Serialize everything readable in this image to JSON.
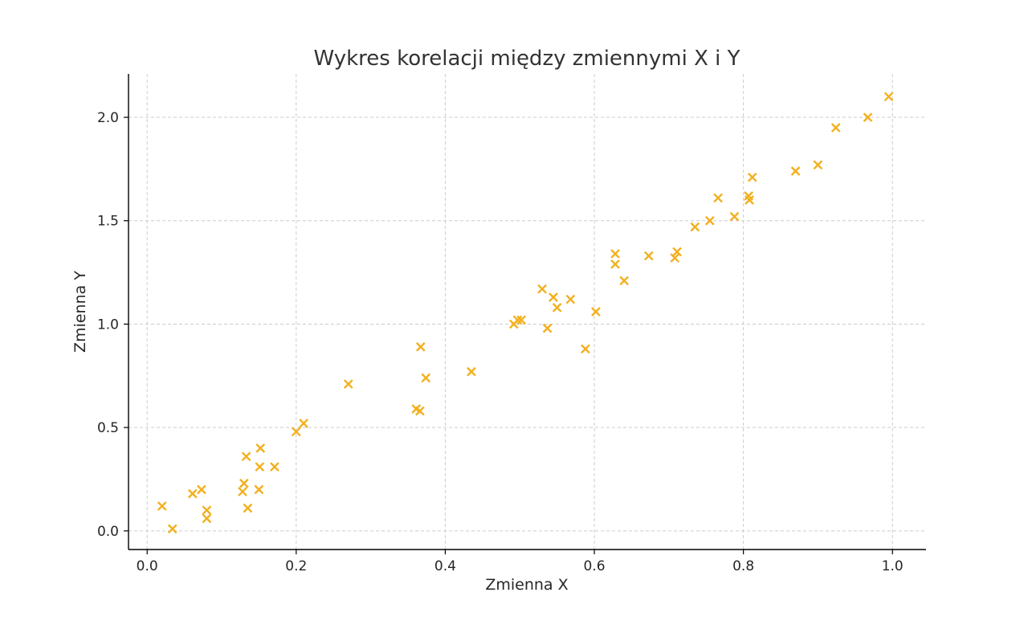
{
  "chart_data": {
    "type": "scatter",
    "title": "Wykres korelacji między zmiennymi X i Y",
    "xlabel": "Zmienna X",
    "ylabel": "Zmienna Y",
    "xlim": [
      -0.025,
      1.045
    ],
    "ylim": [
      -0.09,
      2.21
    ],
    "xticks": [
      0.0,
      0.2,
      0.4,
      0.6,
      0.8,
      1.0
    ],
    "xtick_labels": [
      "0.0",
      "0.2",
      "0.4",
      "0.6",
      "0.8",
      "1.0"
    ],
    "yticks": [
      0.0,
      0.5,
      1.0,
      1.5,
      2.0
    ],
    "ytick_labels": [
      "0.0",
      "0.5",
      "1.0",
      "1.5",
      "2.0"
    ],
    "grid": true,
    "marker": "x",
    "color": "#F2B01E",
    "series": [
      {
        "points": [
          [
            0.02,
            0.12
          ],
          [
            0.034,
            0.01
          ],
          [
            0.061,
            0.18
          ],
          [
            0.073,
            0.2
          ],
          [
            0.08,
            0.1
          ],
          [
            0.08,
            0.06
          ],
          [
            0.128,
            0.19
          ],
          [
            0.13,
            0.23
          ],
          [
            0.133,
            0.36
          ],
          [
            0.135,
            0.11
          ],
          [
            0.15,
            0.2
          ],
          [
            0.151,
            0.31
          ],
          [
            0.152,
            0.4
          ],
          [
            0.171,
            0.31
          ],
          [
            0.2,
            0.48
          ],
          [
            0.21,
            0.52
          ],
          [
            0.27,
            0.71
          ],
          [
            0.361,
            0.59
          ],
          [
            0.366,
            0.58
          ],
          [
            0.367,
            0.89
          ],
          [
            0.374,
            0.74
          ],
          [
            0.435,
            0.77
          ],
          [
            0.492,
            1.0
          ],
          [
            0.497,
            1.02
          ],
          [
            0.502,
            1.02
          ],
          [
            0.53,
            1.17
          ],
          [
            0.537,
            0.98
          ],
          [
            0.545,
            1.13
          ],
          [
            0.55,
            1.08
          ],
          [
            0.568,
            1.12
          ],
          [
            0.588,
            0.88
          ],
          [
            0.602,
            1.06
          ],
          [
            0.628,
            1.34
          ],
          [
            0.628,
            1.29
          ],
          [
            0.64,
            1.21
          ],
          [
            0.673,
            1.33
          ],
          [
            0.708,
            1.32
          ],
          [
            0.711,
            1.35
          ],
          [
            0.735,
            1.47
          ],
          [
            0.755,
            1.5
          ],
          [
            0.766,
            1.61
          ],
          [
            0.788,
            1.52
          ],
          [
            0.807,
            1.62
          ],
          [
            0.808,
            1.6
          ],
          [
            0.812,
            1.71
          ],
          [
            0.87,
            1.74
          ],
          [
            0.9,
            1.77
          ],
          [
            0.924,
            1.95
          ],
          [
            0.967,
            2.0
          ],
          [
            0.995,
            2.1
          ]
        ]
      }
    ]
  }
}
